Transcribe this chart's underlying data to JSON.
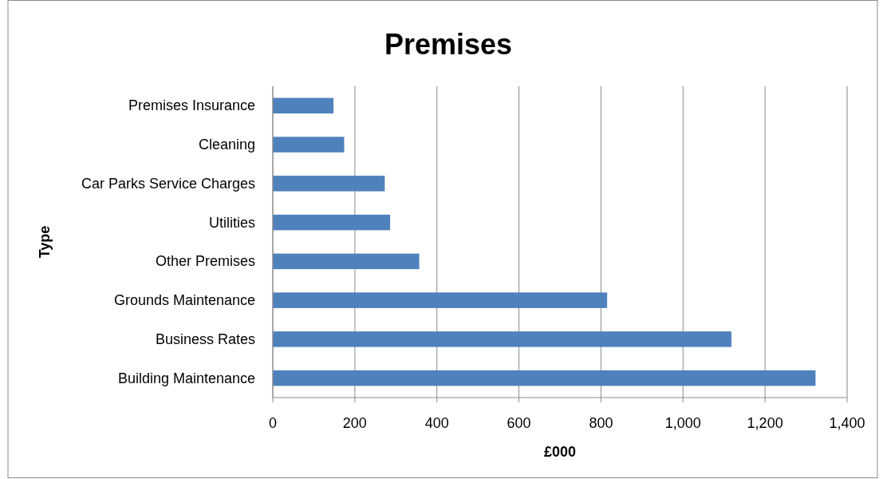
{
  "chart_data": {
    "type": "bar",
    "orientation": "horizontal",
    "title": "Premises",
    "xlabel": "£000",
    "ylabel": "Type",
    "categories": [
      "Premises Insurance",
      "Cleaning",
      "Car Parks Service Charges",
      "Utilities",
      "Other Premises",
      "Grounds Maintenance",
      "Business Rates",
      "Building Maintenance"
    ],
    "values": [
      148,
      174,
      273,
      286,
      357,
      815,
      1118,
      1323
    ],
    "color": "#4f81bd",
    "xlim": [
      0,
      1400
    ],
    "xticks": [
      0,
      200,
      400,
      600,
      800,
      {
        "value": 1000,
        "label": "1,000"
      },
      {
        "value": 1200,
        "label": "1,200"
      },
      {
        "value": 1400,
        "label": "1,400"
      }
    ],
    "grid": "x"
  }
}
